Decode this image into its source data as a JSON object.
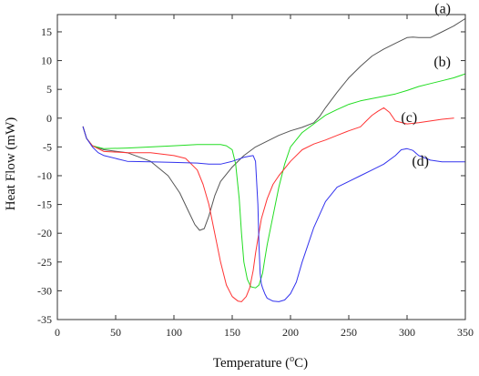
{
  "chart_data": {
    "type": "line",
    "title": "",
    "xlabel": "Temperature (°C)",
    "xlabel_main": "Temperature (",
    "xlabel_sup": "o",
    "xlabel_unit": "C)",
    "ylabel": "Heat Flow (mW)",
    "xlim": [
      0,
      350
    ],
    "ylim": [
      -35,
      18
    ],
    "xticks": [
      0,
      50,
      100,
      150,
      200,
      250,
      300,
      350
    ],
    "yticks": [
      -35,
      -30,
      -25,
      -20,
      -15,
      -10,
      -5,
      0,
      5,
      10,
      15
    ],
    "grid": false,
    "series": [
      {
        "name": "(a)",
        "color": "#555555",
        "x": [
          22,
          25,
          30,
          40,
          60,
          80,
          95,
          105,
          112,
          118,
          122,
          126,
          130,
          135,
          140,
          150,
          160,
          170,
          180,
          190,
          200,
          210,
          220,
          225,
          230,
          240,
          250,
          260,
          270,
          280,
          290,
          300,
          305,
          310,
          320,
          330,
          340,
          350
        ],
        "y": [
          -1.5,
          -3.5,
          -4.8,
          -5.5,
          -6.0,
          -7.5,
          -10.0,
          -13.0,
          -16.0,
          -18.5,
          -19.5,
          -19.2,
          -17.0,
          -13.5,
          -11.0,
          -8.5,
          -6.5,
          -5.0,
          -4.0,
          -3.0,
          -2.2,
          -1.6,
          -0.8,
          0.3,
          1.8,
          4.5,
          7.0,
          9.0,
          10.8,
          12.0,
          13.0,
          14.0,
          14.1,
          14.0,
          14.0,
          15.0,
          16.0,
          17.3
        ]
      },
      {
        "name": "(b)",
        "color": "#22dd22",
        "x": [
          22,
          25,
          30,
          40,
          60,
          80,
          100,
          120,
          140,
          145,
          150,
          153,
          156,
          158,
          160,
          163,
          166,
          170,
          173,
          176,
          178,
          180,
          185,
          190,
          195,
          200,
          210,
          220,
          230,
          240,
          250,
          260,
          270,
          280,
          290,
          300,
          310,
          320,
          330,
          340,
          350
        ],
        "y": [
          -1.5,
          -3.5,
          -4.8,
          -5.3,
          -5.2,
          -5.0,
          -4.8,
          -4.6,
          -4.6,
          -4.8,
          -5.5,
          -8.0,
          -14.0,
          -20.0,
          -25.0,
          -28.0,
          -29.3,
          -29.5,
          -29.0,
          -27.0,
          -24.5,
          -22.0,
          -17.0,
          -12.0,
          -8.0,
          -5.0,
          -2.5,
          -1.0,
          0.5,
          1.5,
          2.4,
          3.0,
          3.4,
          3.8,
          4.2,
          4.8,
          5.5,
          6.0,
          6.5,
          7.0,
          7.7
        ]
      },
      {
        "name": "(c)",
        "color": "#ff3333",
        "x": [
          22,
          25,
          30,
          40,
          60,
          80,
          100,
          110,
          120,
          125,
          130,
          135,
          140,
          145,
          150,
          155,
          158,
          162,
          165,
          168,
          170,
          172,
          175,
          180,
          185,
          190,
          200,
          210,
          220,
          230,
          240,
          250,
          260,
          265,
          270,
          275,
          280,
          285,
          290,
          300,
          310,
          320,
          330,
          340
        ],
        "y": [
          -1.5,
          -3.5,
          -4.8,
          -5.8,
          -6.0,
          -6.0,
          -6.5,
          -7.0,
          -9.0,
          -11.5,
          -15.0,
          -20.0,
          -25.0,
          -29.0,
          -31.0,
          -31.8,
          -31.9,
          -31.0,
          -29.5,
          -26.5,
          -23.5,
          -21.0,
          -17.5,
          -14.0,
          -11.5,
          -10.0,
          -7.5,
          -5.5,
          -4.5,
          -3.8,
          -3.0,
          -2.2,
          -1.5,
          -0.5,
          0.5,
          1.2,
          1.8,
          1.0,
          -0.5,
          -1.0,
          -0.8,
          -0.5,
          -0.2,
          0.0
        ]
      },
      {
        "name": "(d)",
        "color": "#3333ee",
        "x": [
          22,
          25,
          30,
          35,
          40,
          60,
          80,
          100,
          120,
          130,
          140,
          150,
          160,
          165,
          168,
          170,
          172,
          173,
          174,
          175,
          176,
          178,
          180,
          185,
          190,
          195,
          200,
          205,
          210,
          220,
          230,
          240,
          250,
          260,
          270,
          280,
          290,
          295,
          300,
          305,
          310,
          320,
          330,
          340,
          350
        ],
        "y": [
          -1.5,
          -3.5,
          -5.0,
          -6.0,
          -6.5,
          -7.5,
          -7.6,
          -7.7,
          -7.8,
          -8.0,
          -8.0,
          -7.5,
          -6.8,
          -6.6,
          -6.5,
          -7.5,
          -15.0,
          -22.0,
          -27.0,
          -28.8,
          -29.5,
          -30.5,
          -31.3,
          -31.8,
          -31.9,
          -31.6,
          -30.5,
          -28.5,
          -25.0,
          -19.0,
          -14.5,
          -12.0,
          -11.0,
          -10.0,
          -9.0,
          -8.0,
          -6.5,
          -5.5,
          -5.3,
          -5.6,
          -6.5,
          -7.3,
          -7.6,
          -7.6,
          -7.6
        ]
      }
    ]
  }
}
